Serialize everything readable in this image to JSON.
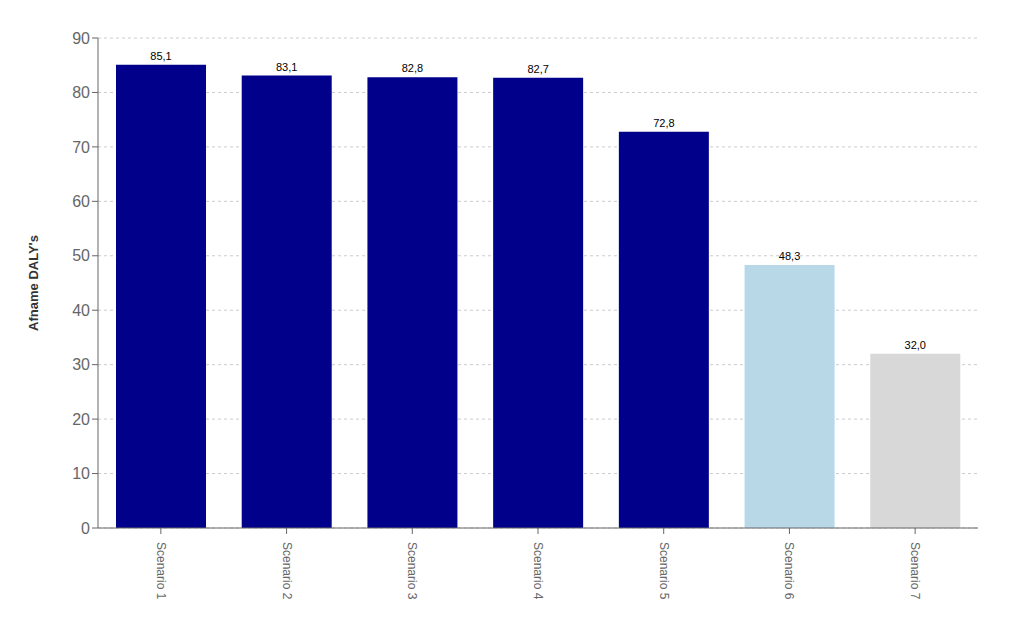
{
  "chart_data": {
    "type": "bar",
    "ylabel": "Afname DALY's",
    "categories": [
      "Scenario 1",
      "Scenario 2",
      "Scenario 3",
      "Scenario 4",
      "Scenario 5",
      "Scenario 6",
      "Scenario 7"
    ],
    "values": [
      85.1,
      83.1,
      82.8,
      82.7,
      72.8,
      48.3,
      32.0
    ],
    "value_labels": [
      "85,1",
      "83,1",
      "82,8",
      "82,7",
      "72,8",
      "48,3",
      "32,0"
    ],
    "data_labels": true,
    "colors": [
      "#00008B",
      "#00008B",
      "#00008B",
      "#00008B",
      "#00008B",
      "#B8D8E8",
      "#D8D8D8"
    ],
    "ylim": [
      0,
      90
    ],
    "yticks": [
      0,
      10,
      20,
      30,
      40,
      50,
      60,
      70,
      80,
      90
    ],
    "grid": true
  }
}
